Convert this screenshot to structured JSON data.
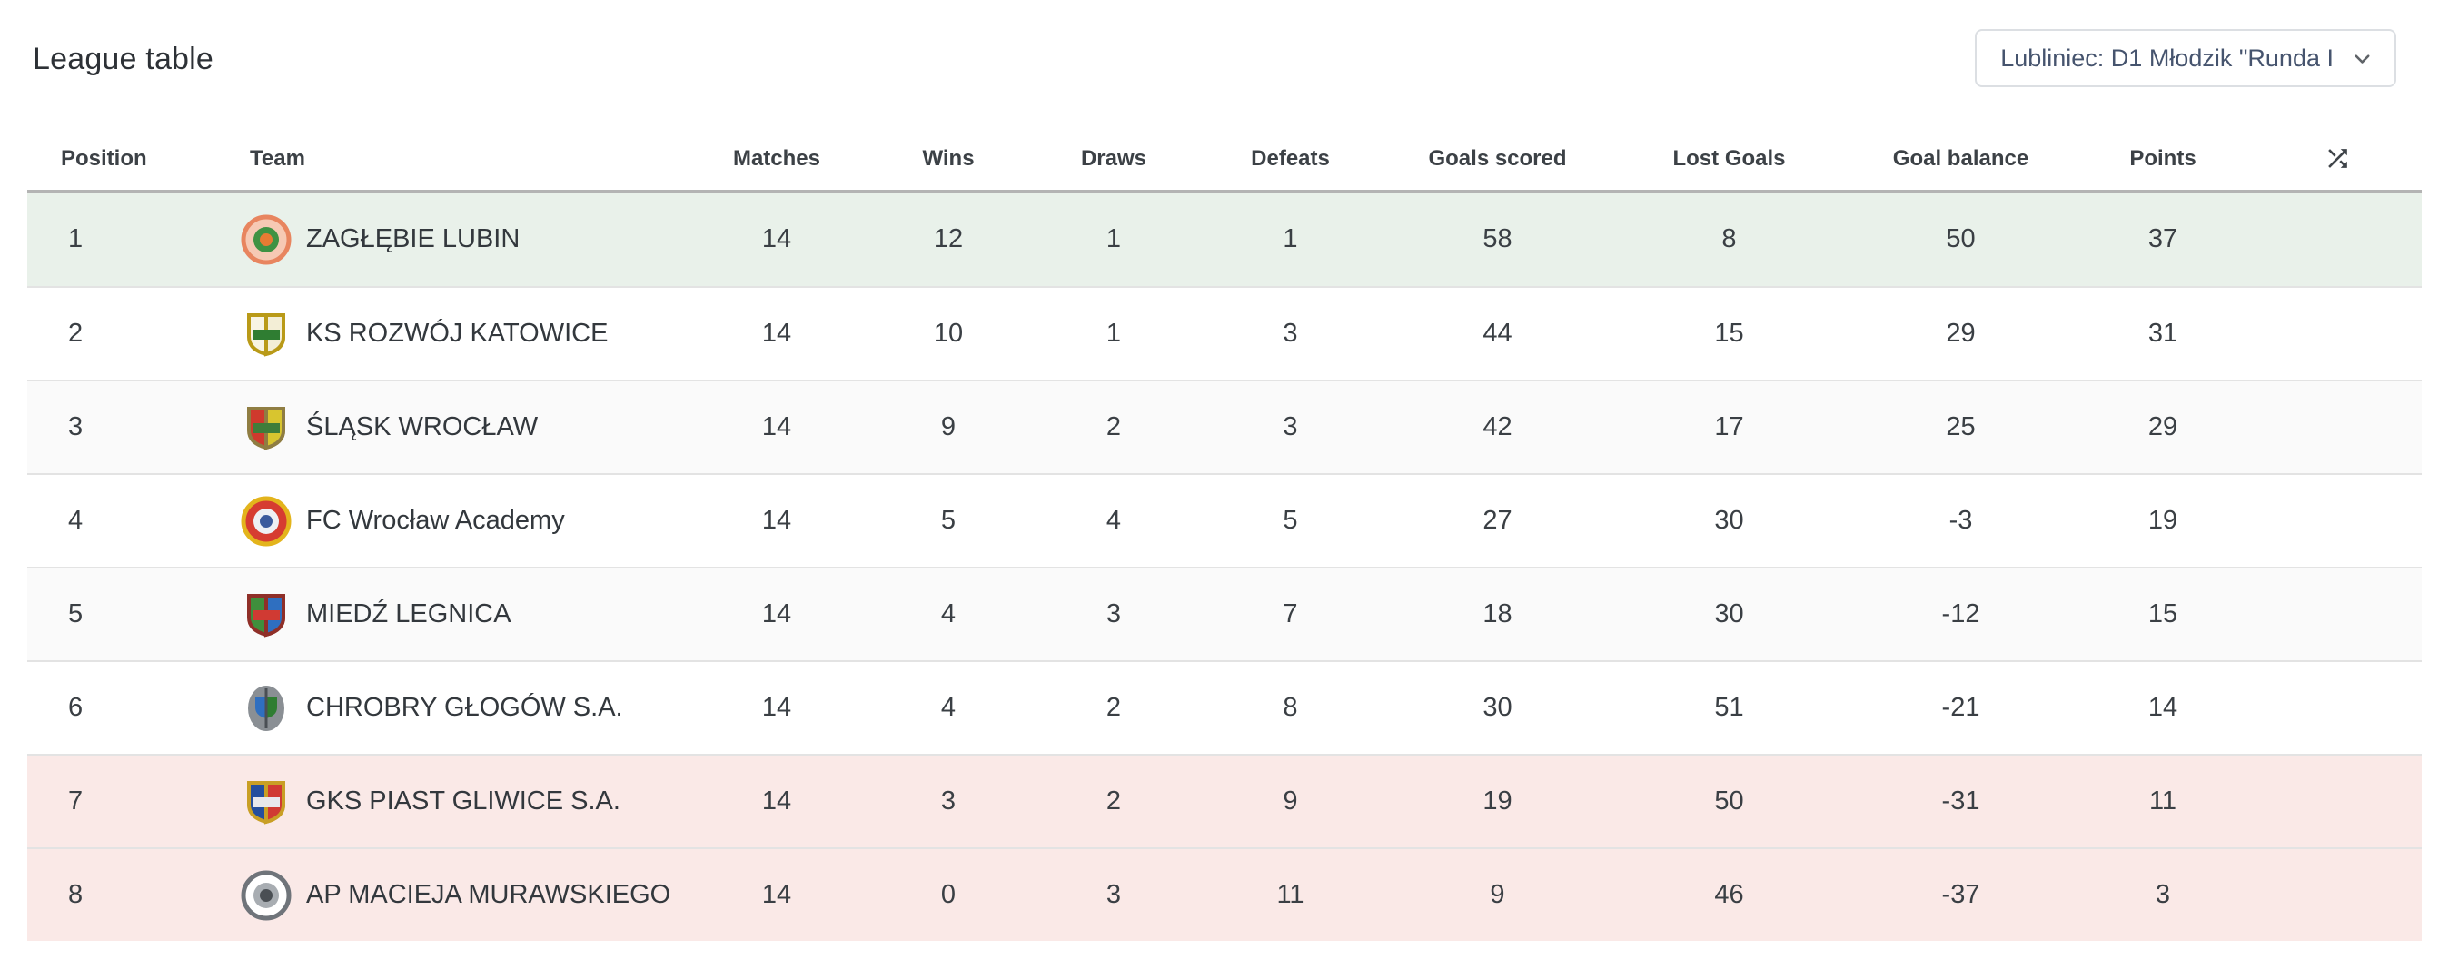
{
  "title": "League table",
  "selector": {
    "value": "Lubliniec: D1 Młodzik \"Runda I",
    "icon": "chevron-down-icon"
  },
  "table": {
    "columns": [
      "Position",
      "Team",
      "Matches",
      "Wins",
      "Draws",
      "Defeats",
      "Goals scored",
      "Lost Goals",
      "Goal balance",
      "Points"
    ],
    "header_sort_icon": "shuffle-icon",
    "rows": [
      {
        "position": "1",
        "team": "ZAGŁĘBIE LUBIN",
        "matches": "14",
        "wins": "12",
        "draws": "1",
        "defeats": "1",
        "goals_scored": "58",
        "lost_goals": "8",
        "goal_balance": "50",
        "points": "37",
        "highlight": "promotion",
        "badge": {
          "icon": "club-badge-icon",
          "type": "circle",
          "colors": [
            "#e8855f",
            "#f6c9b4",
            "#3f9243",
            "#e77b33"
          ]
        }
      },
      {
        "position": "2",
        "team": "KS ROZWÓJ KATOWICE",
        "matches": "14",
        "wins": "10",
        "draws": "1",
        "defeats": "3",
        "goals_scored": "44",
        "lost_goals": "15",
        "goal_balance": "29",
        "points": "31",
        "highlight": "none",
        "badge": {
          "icon": "club-badge-icon",
          "type": "shield",
          "colors": [
            "#b99a18",
            "#f8f4e4",
            "#f3eed6",
            "#2f7d32"
          ]
        }
      },
      {
        "position": "3",
        "team": "ŚLĄSK WROCŁAW",
        "matches": "14",
        "wins": "9",
        "draws": "2",
        "defeats": "3",
        "goals_scored": "42",
        "lost_goals": "17",
        "goal_balance": "25",
        "points": "29",
        "highlight": "none",
        "badge": {
          "icon": "club-badge-icon",
          "type": "shield",
          "colors": [
            "#8f7d42",
            "#cf3a2d",
            "#d8c52f",
            "#3f7d3a"
          ]
        }
      },
      {
        "position": "4",
        "team": "FC Wrocław Academy",
        "matches": "14",
        "wins": "5",
        "draws": "4",
        "defeats": "5",
        "goals_scored": "27",
        "lost_goals": "30",
        "goal_balance": "-3",
        "points": "19",
        "highlight": "none",
        "badge": {
          "icon": "club-badge-icon",
          "type": "circle",
          "colors": [
            "#e3b41c",
            "#d63c31",
            "#eef0f4",
            "#3b5a9c"
          ]
        }
      },
      {
        "position": "5",
        "team": "MIEDŹ LEGNICA",
        "matches": "14",
        "wins": "4",
        "draws": "3",
        "defeats": "7",
        "goals_scored": "18",
        "lost_goals": "30",
        "goal_balance": "-12",
        "points": "15",
        "highlight": "none",
        "badge": {
          "icon": "club-badge-icon",
          "type": "shield",
          "colors": [
            "#8f2f28",
            "#3f8f3c",
            "#2f6fc0",
            "#d03a33"
          ]
        }
      },
      {
        "position": "6",
        "team": "CHROBRY GŁOGÓW S.A.",
        "matches": "14",
        "wins": "4",
        "draws": "2",
        "defeats": "8",
        "goals_scored": "30",
        "lost_goals": "51",
        "goal_balance": "-21",
        "points": "14",
        "highlight": "none",
        "badge": {
          "icon": "club-badge-icon",
          "type": "oval",
          "colors": [
            "#8a8f94",
            "#2f6fc0",
            "#2f7d32",
            "#4a4f54"
          ]
        }
      },
      {
        "position": "7",
        "team": "GKS PIAST GLIWICE S.A.",
        "matches": "14",
        "wins": "3",
        "draws": "2",
        "defeats": "9",
        "goals_scored": "19",
        "lost_goals": "50",
        "goal_balance": "-31",
        "points": "11",
        "highlight": "relegation",
        "badge": {
          "icon": "club-badge-icon",
          "type": "shield",
          "colors": [
            "#c99f25",
            "#244f9e",
            "#d03a33",
            "#e8e8ec"
          ]
        }
      },
      {
        "position": "8",
        "team": "AP MACIEJA MURAWSKIEGO",
        "matches": "14",
        "wins": "0",
        "draws": "3",
        "defeats": "11",
        "goals_scored": "9",
        "lost_goals": "46",
        "goal_balance": "-37",
        "points": "3",
        "highlight": "relegation",
        "badge": {
          "icon": "club-badge-icon",
          "type": "circle",
          "colors": [
            "#6f747a",
            "#ffffff",
            "#a8adb2",
            "#4a4f54"
          ]
        }
      }
    ],
    "colors": {
      "promotion_row": "#e9f1ea",
      "relegation_row": "#fae9e7",
      "stripe_row": "#fafafa",
      "header_divider": "#b4b4b4",
      "row_divider": "#e3e3e3",
      "header_text": "#3c4146",
      "cell_text": "#3a3f44",
      "select_text": "#46546e"
    }
  }
}
